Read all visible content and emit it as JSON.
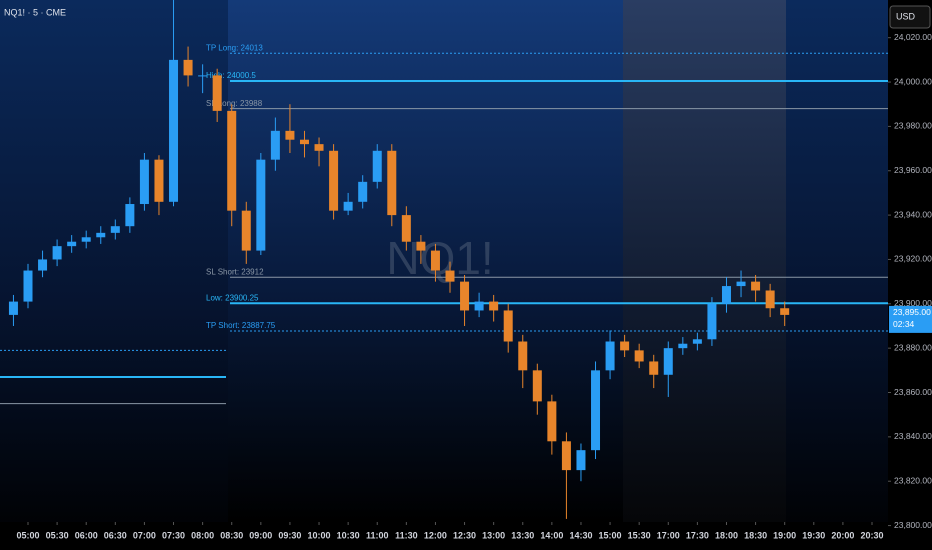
{
  "chart_data": {
    "type": "candlestick",
    "title": "NQ1! · 5 · CME",
    "currency": "USD",
    "watermark": "NQ1!",
    "x": [
      "04:45",
      "05:00",
      "05:15",
      "05:30",
      "05:45",
      "06:00",
      "06:15",
      "06:30",
      "06:45",
      "07:00",
      "07:15",
      "07:30",
      "07:45",
      "08:00",
      "08:15",
      "08:30",
      "08:45",
      "09:00",
      "09:15",
      "09:30",
      "09:45",
      "10:00",
      "10:15",
      "10:30",
      "10:45",
      "11:00",
      "11:15",
      "11:30",
      "11:45",
      "12:00",
      "12:15",
      "12:30",
      "12:45",
      "13:00",
      "13:15",
      "13:30",
      "13:45",
      "14:00",
      "14:15",
      "14:30",
      "14:45",
      "15:00",
      "15:15",
      "15:30",
      "15:45",
      "17:00",
      "17:15",
      "17:30",
      "17:45",
      "18:00",
      "18:15",
      "18:30",
      "18:45",
      "19:00"
    ],
    "open": [
      23895,
      23901,
      23915,
      23920,
      23926,
      23928,
      23930,
      23932,
      23935,
      23945,
      23965,
      23946,
      24010,
      24003,
      24003,
      23987,
      23942,
      23924,
      23965,
      23978,
      23974,
      23972,
      23969,
      23942,
      23946,
      23955,
      23969,
      23940,
      23928,
      23924,
      23915,
      23910,
      23897,
      23901,
      23897,
      23883,
      23870,
      23856,
      23838,
      23825,
      23834,
      23870,
      23883,
      23879,
      23874,
      23868,
      23880,
      23882,
      23884,
      23900,
      23908,
      23910,
      23906,
      23898
    ],
    "high": [
      23904,
      23918,
      23924,
      23929,
      23931,
      23933,
      23935,
      23938,
      23948,
      23968,
      23967,
      24037,
      24016,
      24008,
      24006,
      23990,
      23946,
      23968,
      23984,
      23990,
      23978,
      23975,
      23972,
      23950,
      23958,
      23972,
      23972,
      23944,
      23931,
      23927,
      23919,
      23913,
      23905,
      23904,
      23900,
      23886,
      23873,
      23859,
      23842,
      23837,
      23874,
      23888,
      23886,
      23882,
      23877,
      23883,
      23885,
      23887,
      23903,
      23912,
      23915,
      23913,
      23909,
      23901
    ],
    "low": [
      23890,
      23898,
      23912,
      23917,
      23923,
      23925,
      23927,
      23929,
      23932,
      23942,
      23940,
      23944,
      23998,
      23995,
      23982,
      23935,
      23918,
      23922,
      23960,
      23968,
      23966,
      23962,
      23938,
      23940,
      23943,
      23952,
      23935,
      23924,
      23918,
      23910,
      23905,
      23890,
      23894,
      23892,
      23878,
      23862,
      23850,
      23832,
      23803,
      23820,
      23830,
      23866,
      23876,
      23871,
      23862,
      23858,
      23877,
      23879,
      23881,
      23896,
      23903,
      23901,
      23894,
      23890
    ],
    "close": [
      23901,
      23915,
      23920,
      23926,
      23928,
      23930,
      23932,
      23935,
      23945,
      23965,
      23946,
      24010,
      24003,
      24003,
      23987,
      23942,
      23924,
      23965,
      23978,
      23974,
      23972,
      23969,
      23942,
      23946,
      23955,
      23969,
      23940,
      23928,
      23924,
      23915,
      23910,
      23897,
      23901,
      23897,
      23883,
      23870,
      23856,
      23838,
      23825,
      23834,
      23870,
      23883,
      23879,
      23874,
      23868,
      23880,
      23882,
      23884,
      23900,
      23908,
      23910,
      23906,
      23898,
      23895
    ],
    "up_color": "#2a9df4",
    "down_color": "#e8852b",
    "xticks": [
      "05:00",
      "05:30",
      "06:00",
      "06:30",
      "07:00",
      "07:30",
      "08:00",
      "08:30",
      "09:00",
      "09:30",
      "10:00",
      "10:30",
      "11:00",
      "11:30",
      "12:00",
      "12:30",
      "13:00",
      "13:30",
      "14:00",
      "14:30",
      "15:00",
      "15:30",
      "17:00",
      "17:30",
      "18:00",
      "18:30",
      "19:00",
      "19:30",
      "20:00",
      "20:30"
    ],
    "ylim": [
      23798,
      24037
    ],
    "yticks": [
      {
        "value": 23800,
        "label": "23,800.00"
      },
      {
        "value": 23820,
        "label": "23,820.00"
      },
      {
        "value": 23840,
        "label": "23,840.00"
      },
      {
        "value": 23860,
        "label": "23,860.00"
      },
      {
        "value": 23880,
        "label": "23,880.00"
      },
      {
        "value": 23900,
        "label": "23,900.00"
      },
      {
        "value": 23920,
        "label": "23,920.00"
      },
      {
        "value": 23940,
        "label": "23,940.00"
      },
      {
        "value": 23960,
        "label": "23,960.00"
      },
      {
        "value": 23980,
        "label": "23,980.00"
      },
      {
        "value": 24000,
        "label": "24,000.00"
      },
      {
        "value": 24020,
        "label": "24,020.00"
      }
    ],
    "levels": [
      {
        "label": "TP Long: 24013",
        "value": 24013,
        "style": "dotted",
        "color": "#2a9df4"
      },
      {
        "label": "High: 24000.5",
        "value": 24000.5,
        "style": "solid",
        "color": "#29b6f6"
      },
      {
        "label": "SL Long: 23988",
        "value": 23988,
        "style": "thin",
        "color": "#8a97a6"
      },
      {
        "label": "SL Short: 23912",
        "value": 23912,
        "style": "thin",
        "color": "#8a97a6"
      },
      {
        "label": "Low: 23900.25",
        "value": 23900.25,
        "style": "solid",
        "color": "#29b6f6"
      },
      {
        "label": "TP Short: 23887.75",
        "value": 23887.75,
        "style": "dotted",
        "color": "#2a9df4"
      }
    ],
    "prior_levels": [
      {
        "value": 23879,
        "style": "dotted",
        "color": "#2a9df4"
      },
      {
        "value": 23867,
        "style": "solid",
        "color": "#29b6f6"
      },
      {
        "value": 23855,
        "style": "thin",
        "color": "#8a97a6"
      }
    ],
    "last_price": {
      "value": 23895,
      "label": "23,895.00"
    },
    "countdown": "02:34"
  }
}
